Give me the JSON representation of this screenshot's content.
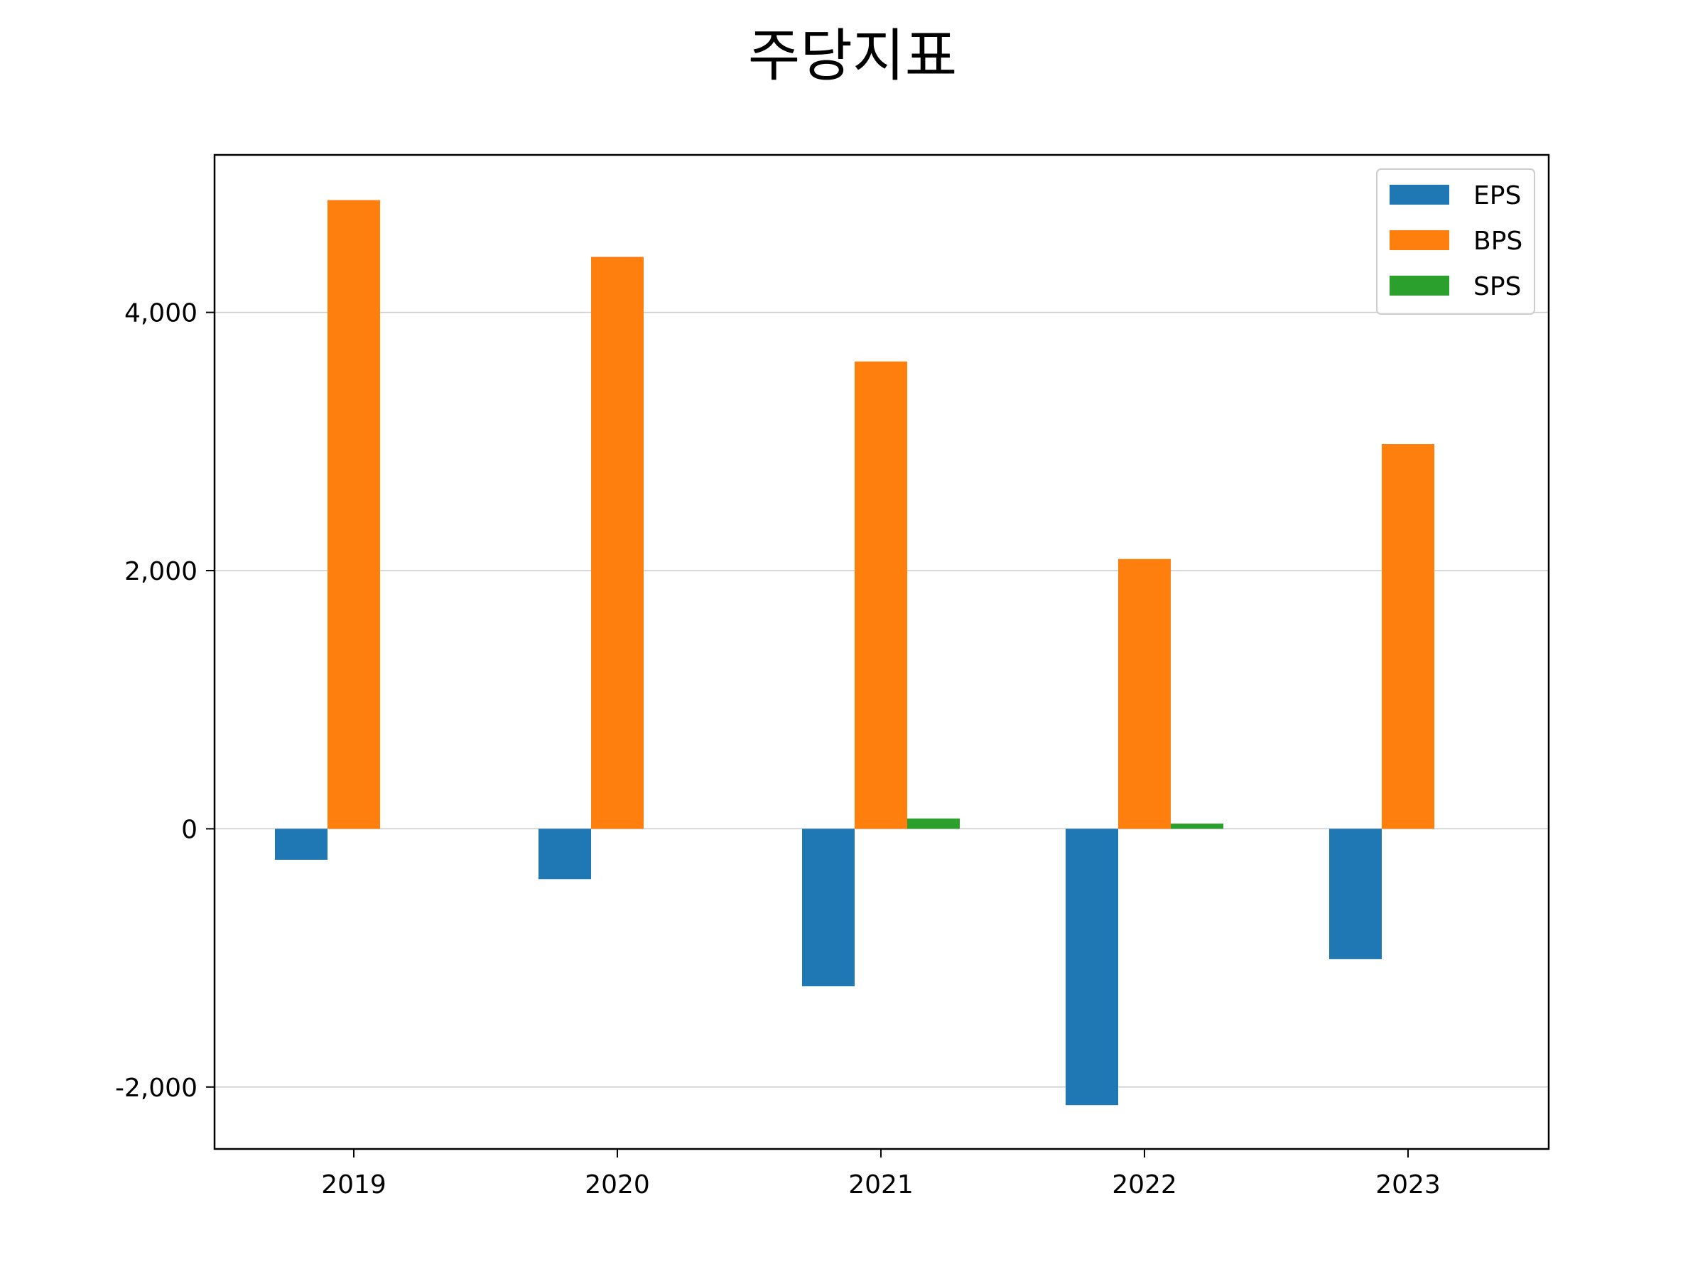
{
  "chart_data": {
    "type": "bar",
    "title": "주당지표",
    "xlabel": "",
    "ylabel": "",
    "categories": [
      "2019",
      "2020",
      "2021",
      "2022",
      "2023"
    ],
    "series": [
      {
        "name": "EPS",
        "color": "#1f77b4",
        "values": [
          -240,
          -390,
          -1220,
          -2140,
          -1010
        ]
      },
      {
        "name": "BPS",
        "color": "#ff7f0e",
        "values": [
          4870,
          4430,
          3620,
          2090,
          2980
        ]
      },
      {
        "name": "SPS",
        "color": "#2ca02c",
        "values": [
          0,
          0,
          80,
          40,
          0
        ]
      }
    ],
    "ylim": [
      -2480,
      5220
    ],
    "yticks": [
      -2000,
      0,
      2000,
      4000
    ],
    "ytick_labels": [
      "-2,000",
      "0",
      "2,000",
      "4,000"
    ],
    "grid": "horizontal",
    "legend_position": "top-right"
  }
}
